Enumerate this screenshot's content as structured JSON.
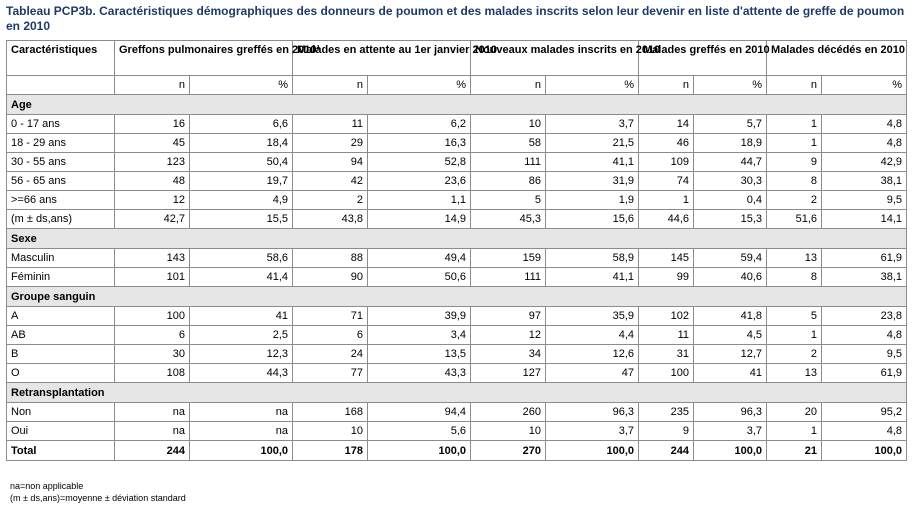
{
  "title": "Tableau PCP3b. Caractéristiques démographiques des donneurs de poumon et des malades inscrits selon leur devenir en liste d'attente de greffe de poumon en 2010",
  "headers": {
    "carac": "Caractéristiques",
    "groups": [
      "Greffons pulmonaires greffés en 2010¹",
      "Malades en attente au 1er janvier 2010",
      "Nouveaux malades inscrits en 2010",
      "Malades greffés en 2010",
      "Malades décédés en 2010"
    ],
    "n": "n",
    "pct": "%"
  },
  "sections": [
    {
      "name": "Age",
      "rows": [
        {
          "label": "0 - 17 ans",
          "vals": [
            "16",
            "6,6",
            "11",
            "6,2",
            "10",
            "3,7",
            "14",
            "5,7",
            "1",
            "4,8"
          ]
        },
        {
          "label": "18 - 29 ans",
          "vals": [
            "45",
            "18,4",
            "29",
            "16,3",
            "58",
            "21,5",
            "46",
            "18,9",
            "1",
            "4,8"
          ]
        },
        {
          "label": "30 - 55 ans",
          "vals": [
            "123",
            "50,4",
            "94",
            "52,8",
            "111",
            "41,1",
            "109",
            "44,7",
            "9",
            "42,9"
          ]
        },
        {
          "label": "56 - 65 ans",
          "vals": [
            "48",
            "19,7",
            "42",
            "23,6",
            "86",
            "31,9",
            "74",
            "30,3",
            "8",
            "38,1"
          ]
        },
        {
          "label": ">=66 ans",
          "vals": [
            "12",
            "4,9",
            "2",
            "1,1",
            "5",
            "1,9",
            "1",
            "0,4",
            "2",
            "9,5"
          ]
        },
        {
          "label": "(m ± ds,ans)",
          "vals": [
            "42,7",
            "15,5",
            "43,8",
            "14,9",
            "45,3",
            "15,6",
            "44,6",
            "15,3",
            "51,6",
            "14,1"
          ]
        }
      ]
    },
    {
      "name": "Sexe",
      "rows": [
        {
          "label": "Masculin",
          "vals": [
            "143",
            "58,6",
            "88",
            "49,4",
            "159",
            "58,9",
            "145",
            "59,4",
            "13",
            "61,9"
          ]
        },
        {
          "label": "Féminin",
          "vals": [
            "101",
            "41,4",
            "90",
            "50,6",
            "111",
            "41,1",
            "99",
            "40,6",
            "8",
            "38,1"
          ]
        }
      ]
    },
    {
      "name": "Groupe sanguin",
      "rows": [
        {
          "label": "A",
          "vals": [
            "100",
            "41",
            "71",
            "39,9",
            "97",
            "35,9",
            "102",
            "41,8",
            "5",
            "23,8"
          ]
        },
        {
          "label": "AB",
          "vals": [
            "6",
            "2,5",
            "6",
            "3,4",
            "12",
            "4,4",
            "11",
            "4,5",
            "1",
            "4,8"
          ]
        },
        {
          "label": "B",
          "vals": [
            "30",
            "12,3",
            "24",
            "13,5",
            "34",
            "12,6",
            "31",
            "12,7",
            "2",
            "9,5"
          ]
        },
        {
          "label": "O",
          "vals": [
            "108",
            "44,3",
            "77",
            "43,3",
            "127",
            "47",
            "100",
            "41",
            "13",
            "61,9"
          ]
        }
      ]
    },
    {
      "name": "Retransplantation",
      "rows": [
        {
          "label": "Non",
          "vals": [
            "na",
            "na",
            "168",
            "94,4",
            "260",
            "96,3",
            "235",
            "96,3",
            "20",
            "95,2"
          ]
        },
        {
          "label": "Oui",
          "vals": [
            "na",
            "na",
            "10",
            "5,6",
            "10",
            "3,7",
            "9",
            "3,7",
            "1",
            "4,8"
          ]
        }
      ]
    }
  ],
  "total": {
    "label": "Total",
    "vals": [
      "244",
      "100,0",
      "178",
      "100,0",
      "270",
      "100,0",
      "244",
      "100,0",
      "21",
      "100,0"
    ]
  },
  "notes": [
    "na=non applicable",
    "(m ± ds,ans)=moyenne ± déviation standard"
  ]
}
